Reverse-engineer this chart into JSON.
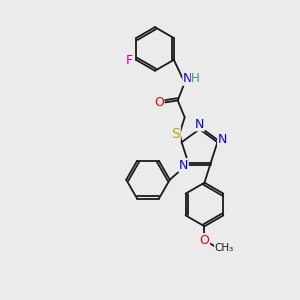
{
  "background_color": "#ebebeb",
  "bond_color": "#1a1a1a",
  "atom_colors": {
    "F": "#cc00cc",
    "N": "#0000ee",
    "O": "#ee0000",
    "S": "#bbaa00",
    "H": "#4a9090",
    "C": "#1a1a1a"
  },
  "figsize": [
    3.0,
    3.0
  ],
  "dpi": 100,
  "bond_lw": 1.3,
  "font_size": 8.5
}
